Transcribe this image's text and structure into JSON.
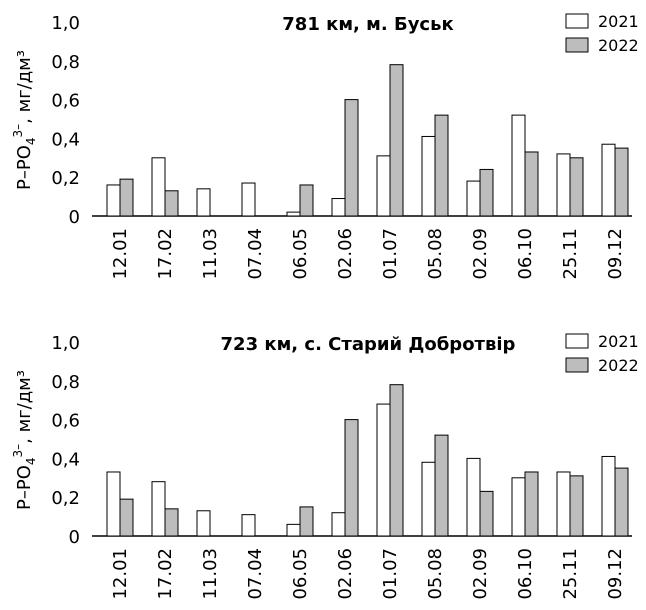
{
  "chart_data": [
    {
      "type": "bar",
      "title": "781 км, м. Буськ",
      "ylabel": {
        "prefix": "Р–РО",
        "sub": "4",
        "sup": "3–",
        "suffix": ", мг/дм³"
      },
      "ylim": [
        0,
        1.0
      ],
      "yticks": [
        "0",
        "0,2",
        "0,4",
        "0,6",
        "0,8",
        "1,0"
      ],
      "ytick_values": [
        0,
        0.2,
        0.4,
        0.6,
        0.8,
        1.0
      ],
      "categories": [
        "12.01",
        "17.02",
        "11.03",
        "07.04",
        "06.05",
        "02.06",
        "01.07",
        "05.08",
        "02.09",
        "06.10",
        "25.11",
        "09.12"
      ],
      "legend_position": "top-right",
      "series": [
        {
          "name": "2021",
          "color": "#ffffff",
          "values": [
            0.16,
            0.3,
            0.14,
            0.17,
            0.02,
            0.09,
            0.31,
            0.41,
            0.18,
            0.52,
            0.32,
            0.37
          ]
        },
        {
          "name": "2022",
          "color": "#bdbdbd",
          "values": [
            0.19,
            0.13,
            null,
            null,
            0.16,
            0.6,
            0.78,
            0.52,
            0.24,
            0.33,
            0.3,
            0.35
          ]
        }
      ]
    },
    {
      "type": "bar",
      "title": "723 км, с. Старий Добротвір",
      "ylabel": {
        "prefix": "Р–РО",
        "sub": "4",
        "sup": "3–",
        "suffix": ", мг/дм³"
      },
      "ylim": [
        0,
        1.0
      ],
      "yticks": [
        "0",
        "0,2",
        "0,4",
        "0,6",
        "0,8",
        "1,0"
      ],
      "ytick_values": [
        0,
        0.2,
        0.4,
        0.6,
        0.8,
        1.0
      ],
      "categories": [
        "12.01",
        "17.02",
        "11.03",
        "07.04",
        "06.05",
        "02.06",
        "01.07",
        "05.08",
        "02.09",
        "06.10",
        "25.11",
        "09.12"
      ],
      "legend_position": "top-right",
      "series": [
        {
          "name": "2021",
          "color": "#ffffff",
          "values": [
            0.33,
            0.28,
            0.13,
            0.11,
            0.06,
            0.12,
            0.68,
            0.38,
            0.4,
            0.3,
            0.33,
            0.41
          ]
        },
        {
          "name": "2022",
          "color": "#bdbdbd",
          "values": [
            0.19,
            0.14,
            null,
            null,
            0.15,
            0.6,
            0.78,
            0.52,
            0.23,
            0.33,
            0.31,
            0.35
          ]
        }
      ]
    }
  ]
}
